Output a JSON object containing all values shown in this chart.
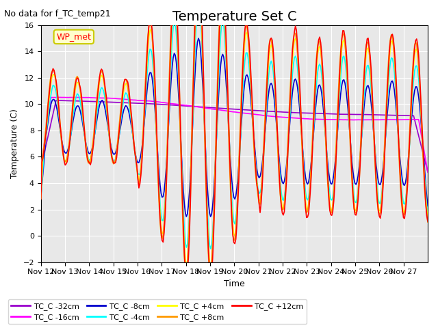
{
  "title": "Temperature Set C",
  "subtitle": "No data for f_TC_temp21",
  "xlabel": "Time",
  "ylabel": "Temperature (C)",
  "ylim": [
    -2,
    16
  ],
  "yticks": [
    -2,
    0,
    2,
    4,
    6,
    8,
    10,
    12,
    14,
    16
  ],
  "x_labels": [
    "Nov 12",
    "Nov 13",
    "Nov 14",
    "Nov 15",
    "Nov 16",
    "Nov 17",
    "Nov 18",
    "Nov 19",
    "Nov 20",
    "Nov 21",
    "Nov 22",
    "Nov 23",
    "Nov 24",
    "Nov 25",
    "Nov 26",
    "Nov 27"
  ],
  "wp_met_label": "WP_met",
  "legend_entries": [
    "TC_C -32cm",
    "TC_C -16cm",
    "TC_C -8cm",
    "TC_C -4cm",
    "TC_C +4cm",
    "TC_C +8cm",
    "TC_C +12cm"
  ],
  "line_colors": {
    "TC_C -32cm": "#9900cc",
    "TC_C -16cm": "#ff00ff",
    "TC_C -8cm": "#0000cc",
    "TC_C -4cm": "#00ffff",
    "TC_C +4cm": "#ffff00",
    "TC_C +8cm": "#ff9900",
    "TC_C +12cm": "#ff0000"
  },
  "background_color": "#ffffff",
  "plot_bg_color": "#e8e8e8",
  "grid_color": "#ffffff",
  "title_fontsize": 14,
  "axis_fontsize": 9,
  "tick_fontsize": 8
}
